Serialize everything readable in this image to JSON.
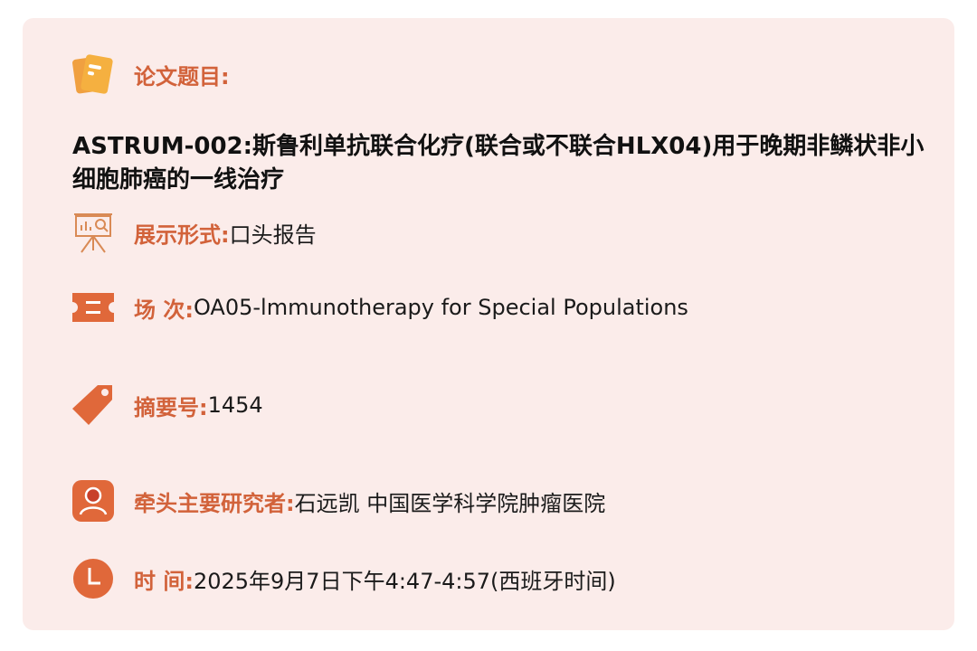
{
  "paper_title": {
    "label": "论文题目:",
    "value": "ASTRUM-002:斯鲁利单抗联合化疗(联合或不联合HLX04)用于晚期非鳞状非小细胞肺癌的一线治疗",
    "icon": "document-icon"
  },
  "format": {
    "label": "展示形式:",
    "value": "口头报告",
    "icon": "presentation-board-icon"
  },
  "session": {
    "label": "场 次:",
    "value": "OA05-lmmunotherapy for Special Populations",
    "icon": "ticket-icon"
  },
  "abstract": {
    "label": "摘要号:",
    "value": "1454",
    "icon": "tag-icon"
  },
  "investigator": {
    "label": "牵头主要研究者:",
    "value": "石远凯 中国医学科学院肿瘤医院",
    "icon": "user-icon"
  },
  "time": {
    "label": "时 间:",
    "value": "2025年9月7日下午4:47-4:57(西班牙时间)",
    "icon": "clock-icon"
  },
  "colors": {
    "accent": "#d2623a",
    "background": "#fbecea"
  }
}
